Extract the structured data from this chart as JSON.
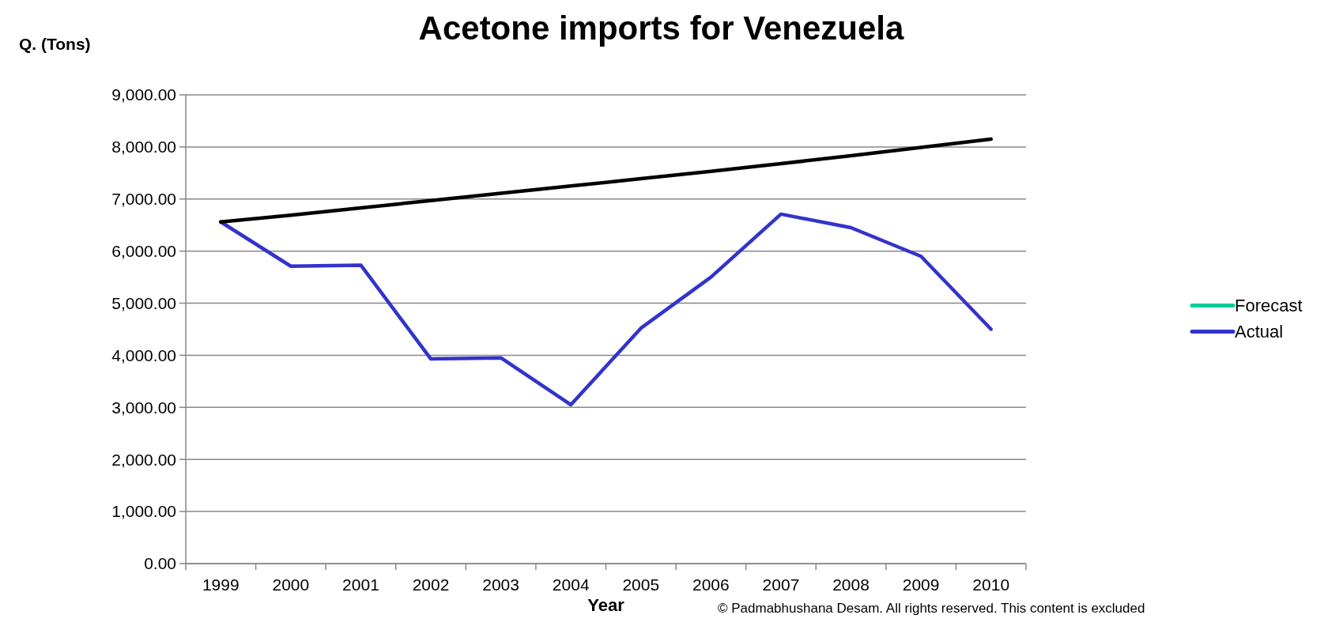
{
  "chart_data": {
    "type": "line",
    "title": "Acetone imports for Venezuela",
    "xlabel": "Year",
    "ylabel": "Q. (Tons)",
    "categories": [
      "1999",
      "2000",
      "2001",
      "2002",
      "2003",
      "2004",
      "2005",
      "2006",
      "2007",
      "2008",
      "2009",
      "2010"
    ],
    "series": [
      {
        "name": "Forecast",
        "color": "#00cc99",
        "values": [
          null,
          null,
          null,
          null,
          null,
          null,
          null,
          null,
          null,
          null,
          null,
          null
        ]
      },
      {
        "name": "Actual",
        "color": "#3333cc",
        "values": [
          6560,
          5710,
          5730,
          3930,
          3950,
          3050,
          4520,
          5500,
          6710,
          6450,
          5900,
          4500
        ]
      },
      {
        "color": "#000000",
        "values": [
          6560,
          6690,
          6830,
          6970,
          7110,
          7250,
          7390,
          7530,
          7680,
          7830,
          7990,
          8150
        ]
      }
    ],
    "ylim": [
      0,
      9000
    ],
    "yticks": [
      {
        "value": 0,
        "label": "0.00"
      },
      {
        "value": 1000,
        "label": "1,000.00"
      },
      {
        "value": 2000,
        "label": "2,000.00"
      },
      {
        "value": 3000,
        "label": "3,000.00"
      },
      {
        "value": 4000,
        "label": "4,000.00"
      },
      {
        "value": 5000,
        "label": "5,000.00"
      },
      {
        "value": 6000,
        "label": "6,000.00"
      },
      {
        "value": 7000,
        "label": "7,000.00"
      },
      {
        "value": 8000,
        "label": "8,000.00"
      },
      {
        "value": 9000,
        "label": "9,000.00"
      }
    ],
    "grid": "y",
    "legend": "right",
    "marker": "none",
    "line_style": "solid",
    "annotations": [
      "© Padmabhushana Desam. All rights reserved. This content is excluded"
    ]
  }
}
